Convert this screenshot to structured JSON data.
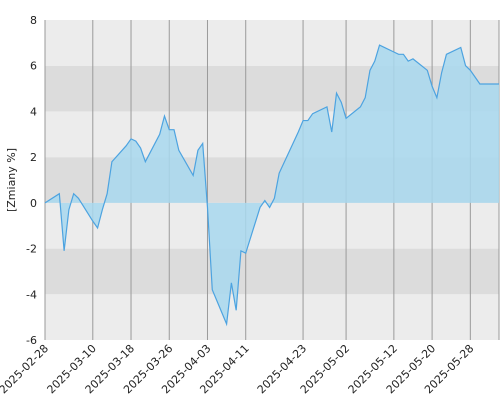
{
  "chart_data": {
    "type": "area",
    "ylabel": "[Zmiany %]",
    "ylim": [
      -6,
      8
    ],
    "y_ticks": [
      "8",
      "6",
      "4",
      "2",
      "0",
      "-2",
      "-4",
      "-6"
    ],
    "x_tick_labels": [
      "2025-02-28",
      "2025-03-10",
      "2025-03-18",
      "2025-03-26",
      "2025-04-03",
      "2025-04-11",
      "2025-04-23",
      "2025-05-02",
      "2025-05-12",
      "2025-05-20",
      "2025-05-28"
    ],
    "grid": true,
    "colors": {
      "line": "#4da3e0",
      "fill": "#a8d8ee",
      "band_dark": "#dcdcdc",
      "band_light": "#ececec",
      "gridline": "#9a9a9a"
    },
    "series": [
      {
        "x": [
          "2025-02-28",
          "2025-03-03",
          "2025-03-04",
          "2025-03-05",
          "2025-03-06",
          "2025-03-07",
          "2025-03-10",
          "2025-03-11",
          "2025-03-12",
          "2025-03-13",
          "2025-03-14",
          "2025-03-17",
          "2025-03-18",
          "2025-03-19",
          "2025-03-20",
          "2025-03-21",
          "2025-03-24",
          "2025-03-25",
          "2025-03-26",
          "2025-03-27",
          "2025-03-28",
          "2025-03-31",
          "2025-04-01",
          "2025-04-02",
          "2025-04-03",
          "2025-04-04",
          "2025-04-07",
          "2025-04-08",
          "2025-04-09",
          "2025-04-10",
          "2025-04-11",
          "2025-04-14",
          "2025-04-15",
          "2025-04-16",
          "2025-04-17",
          "2025-04-18",
          "2025-04-22",
          "2025-04-23",
          "2025-04-24",
          "2025-04-25",
          "2025-04-28",
          "2025-04-29",
          "2025-04-30",
          "2025-05-01",
          "2025-05-02",
          "2025-05-05",
          "2025-05-06",
          "2025-05-07",
          "2025-05-08",
          "2025-05-09",
          "2025-05-12",
          "2025-05-13",
          "2025-05-14",
          "2025-05-15",
          "2025-05-16",
          "2025-05-19",
          "2025-05-20",
          "2025-05-21",
          "2025-05-22",
          "2025-05-23",
          "2025-05-26",
          "2025-05-27",
          "2025-05-28",
          "2025-05-29",
          "2025-05-30",
          "2025-06-02",
          "2025-06-03"
        ],
        "values": [
          0.0,
          0.4,
          -2.1,
          -0.3,
          0.4,
          0.2,
          -0.8,
          -1.1,
          -0.3,
          0.4,
          1.8,
          2.5,
          2.8,
          2.7,
          2.4,
          1.8,
          3.0,
          3.8,
          3.2,
          3.2,
          2.3,
          1.2,
          2.3,
          2.6,
          -0.2,
          -3.8,
          -5.3,
          -3.5,
          -4.7,
          -2.1,
          -2.2,
          -0.2,
          0.1,
          -0.2,
          0.2,
          1.3,
          3.1,
          3.6,
          3.6,
          3.9,
          4.2,
          3.1,
          4.8,
          4.4,
          3.7,
          4.2,
          4.6,
          5.8,
          6.2,
          6.9,
          6.6,
          6.5,
          6.5,
          6.2,
          6.3,
          5.8,
          5.1,
          4.6,
          5.7,
          6.5,
          6.8,
          6.0,
          5.8,
          5.5,
          5.2,
          5.2,
          5.2
        ]
      }
    ]
  }
}
